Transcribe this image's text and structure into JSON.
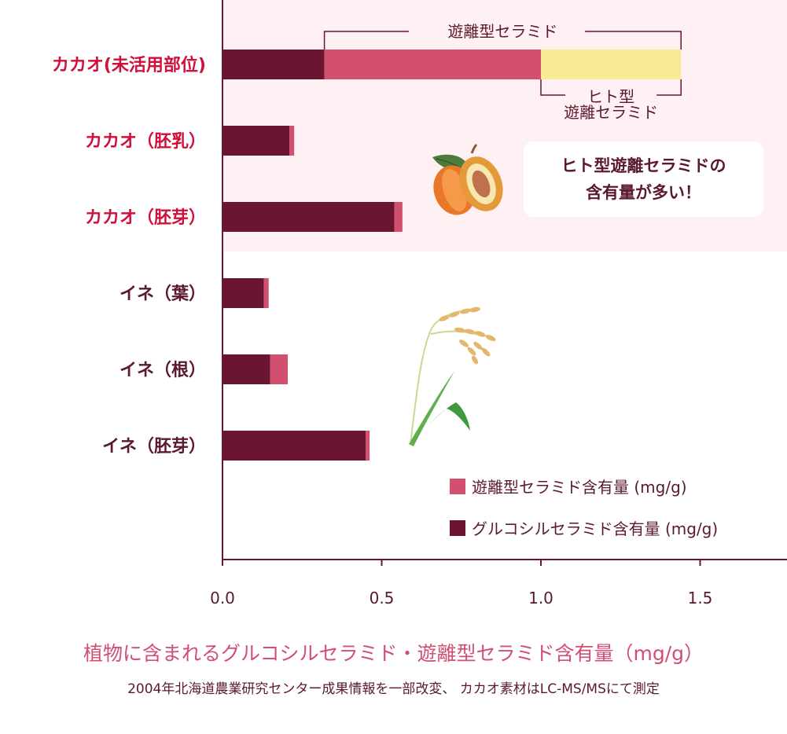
{
  "chart_data": {
    "type": "bar",
    "orientation": "horizontal",
    "stacked": true,
    "categories": [
      "カカオ(未活用部位)",
      "カカオ（胚乳）",
      "カカオ（胚芽）",
      "イネ（葉）",
      "イネ（根）",
      "イネ（胚芽）"
    ],
    "category_colors": [
      "#d0103a",
      "#d0103a",
      "#d0103a",
      "#5a1a2c",
      "#5a1a2c",
      "#5a1a2c"
    ],
    "series": [
      {
        "name": "グルコシルセラミド含有量 (mg/g)",
        "color": "#6a1630",
        "values": [
          0.32,
          0.21,
          0.54,
          0.13,
          0.15,
          0.45
        ]
      },
      {
        "name": "遊離型セラミド含有量 (mg/g)",
        "color": "#d24f6f",
        "values": [
          0.68,
          0.015,
          0.025,
          0.015,
          0.055,
          0.012
        ]
      },
      {
        "name": "ヒト型遊離セラミド",
        "color": "#faea96",
        "values": [
          0.44,
          0,
          0,
          0,
          0,
          0
        ]
      }
    ],
    "xticks": [
      "0.0",
      "0.5",
      "1.0",
      "1.5"
    ],
    "xlim": [
      0,
      1.78
    ],
    "bracket_top_label": "遊離型セラミド",
    "bracket_bottom_label": [
      "ヒト型",
      "遊離セラミド"
    ],
    "highlight_band_color": "#fff0f4",
    "grid": false,
    "legend_position": "bottom-right"
  },
  "callout": {
    "line1": "ヒト型遊離セラミドの",
    "line2": "含有量が多い！"
  },
  "legend": {
    "free": {
      "label": "遊離型セラミド含有量 (mg/g)",
      "color": "#d24f6f"
    },
    "gluco": {
      "label": "グルコシルセラミド含有量 (mg/g)",
      "color": "#6a1630"
    }
  },
  "caption": {
    "title": "植物に含まれるグルコシルセラミド・遊離型セラミド含有量（mg/g）",
    "source": "2004年北海道農業研究センター成果情報を一部改変、 カカオ素材はLC-MS/MSにて測定"
  }
}
